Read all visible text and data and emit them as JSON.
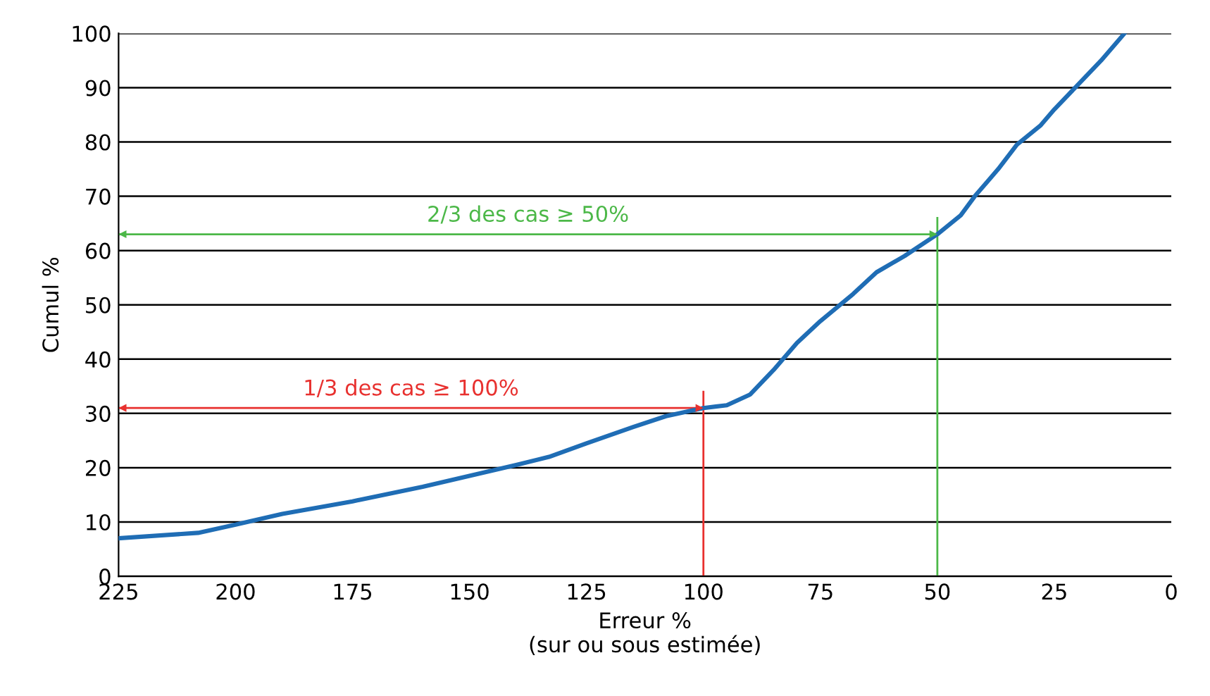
{
  "chart_data": {
    "type": "line",
    "xlabel": "Erreur %\n(sur ou sous estimée)",
    "ylabel": "Cumul %",
    "x": [
      225,
      208,
      200,
      190,
      175,
      160,
      150,
      140,
      133,
      125,
      115,
      108,
      100,
      95,
      90,
      85,
      80,
      75,
      68,
      63,
      57,
      50,
      45,
      42,
      37,
      33,
      28,
      25,
      20,
      15,
      10
    ],
    "series": [
      {
        "color": "#1f6db5",
        "values": [
          7,
          8,
          9.5,
          11.5,
          13.8,
          16.5,
          18.5,
          20.5,
          22,
          24.5,
          27.5,
          29.5,
          31,
          31.5,
          33.5,
          38,
          43,
          47,
          52,
          56,
          59,
          63,
          66.5,
          70,
          75,
          79.5,
          83,
          86,
          90.5,
          95,
          100
        ]
      },
      {
        "color": "#e8312f",
        "x": [
          100,
          100
        ],
        "values": [
          0,
          34
        ]
      },
      {
        "color": "#e8312f",
        "x": [
          225,
          100
        ],
        "values": [
          31,
          31
        ],
        "marker": "triangle"
      },
      {
        "color": "#4cb848",
        "x": [
          50,
          50
        ],
        "values": [
          0,
          66
        ]
      },
      {
        "color": "#4cb848",
        "x": [
          225,
          50
        ],
        "values": [
          63,
          63
        ],
        "marker": "triangle"
      }
    ],
    "annotations": [
      {
        "text": "1/3 des cas ≥ 100%",
        "x": 162.5,
        "y": 31
      },
      {
        "text": "2/3 des cas ≥ 50%",
        "x": 137.5,
        "y": 63
      }
    ],
    "xlim": [
      225,
      0
    ],
    "xticks": [
      225,
      200,
      175,
      150,
      125,
      100,
      75,
      50,
      25,
      0
    ],
    "ylim": [
      0,
      100
    ],
    "yticks": [
      0,
      10,
      20,
      30,
      40,
      50,
      60,
      70,
      80,
      90,
      100
    ],
    "grid": "y",
    "marker": "none",
    "line_style": "solid"
  }
}
